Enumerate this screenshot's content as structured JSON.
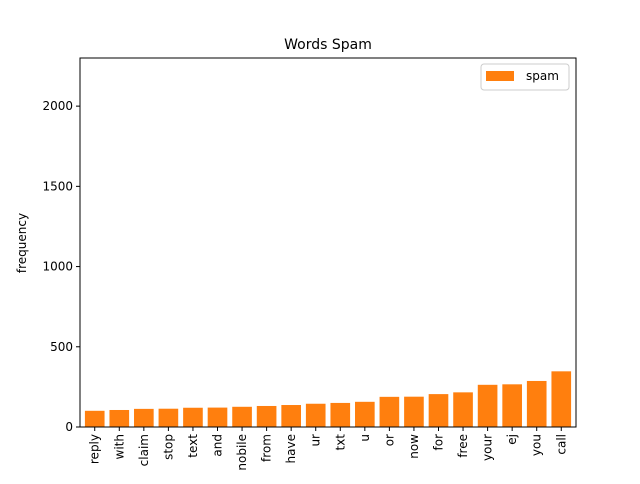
{
  "chart_data": {
    "type": "bar",
    "title": "Words Spam",
    "xlabel": "",
    "ylabel": "frequency",
    "ylim": [
      0,
      2300
    ],
    "yticks": [
      0,
      500,
      1000,
      1500,
      2000
    ],
    "grid": false,
    "legend_position": "top-right",
    "categories": [
      "reply",
      "with",
      "claim",
      "stop",
      "text",
      "and",
      "nobile",
      "from",
      "have",
      "ur",
      "txt",
      "u",
      "or",
      "now",
      "for",
      "free",
      "your",
      "ej",
      "you",
      "call"
    ],
    "series": [
      {
        "name": "spam",
        "color": "#ff7f0e",
        "values": [
          101,
          106,
          113,
          114,
          120,
          121,
          126,
          131,
          137,
          145,
          150,
          157,
          188,
          189,
          205,
          216,
          263,
          266,
          287,
          347
        ]
      }
    ]
  }
}
